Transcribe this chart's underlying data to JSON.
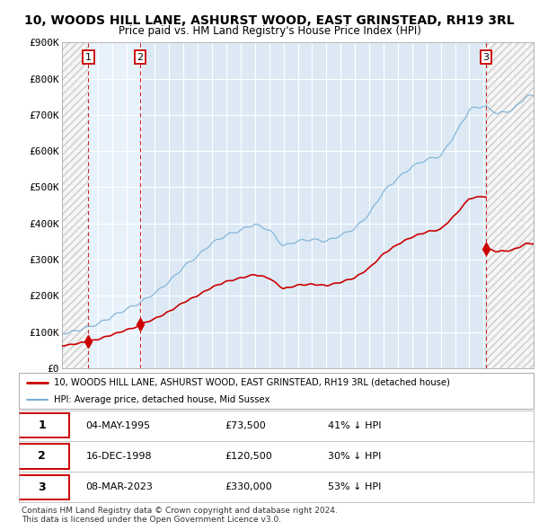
{
  "title": "10, WOODS HILL LANE, ASHURST WOOD, EAST GRINSTEAD, RH19 3RL",
  "subtitle": "Price paid vs. HM Land Registry's House Price Index (HPI)",
  "ylim": [
    0,
    900000
  ],
  "yticks": [
    0,
    100000,
    200000,
    300000,
    400000,
    500000,
    600000,
    700000,
    800000,
    900000
  ],
  "ytick_labels": [
    "£0",
    "£100K",
    "£200K",
    "£300K",
    "£400K",
    "£500K",
    "£600K",
    "£700K",
    "£800K",
    "£900K"
  ],
  "xlim_start": 1993.5,
  "xlim_end": 2026.5,
  "sales": [
    {
      "date_num": 1995.34,
      "price": 73500,
      "label": "1"
    },
    {
      "date_num": 1998.96,
      "price": 120500,
      "label": "2"
    },
    {
      "date_num": 2023.18,
      "price": 330000,
      "label": "3"
    }
  ],
  "sale_color": "#cc0000",
  "hpi_color": "#7aafd4",
  "legend_entries": [
    "10, WOODS HILL LANE, ASHURST WOOD, EAST GRINSTEAD, RH19 3RL (detached house)",
    "HPI: Average price, detached house, Mid Sussex"
  ],
  "table_rows": [
    {
      "num": "1",
      "date": "04-MAY-1995",
      "price": "£73,500",
      "hpi": "41% ↓ HPI"
    },
    {
      "num": "2",
      "date": "16-DEC-1998",
      "price": "£120,500",
      "hpi": "30% ↓ HPI"
    },
    {
      "num": "3",
      "date": "08-MAR-2023",
      "price": "£330,000",
      "hpi": "53% ↓ HPI"
    }
  ],
  "footnote": "Contains HM Land Registry data © Crown copyright and database right 2024.\nThis data is licensed under the Open Government Licence v3.0.",
  "bg_color": "#ffffff",
  "plot_bg_color": "#dce9f5",
  "grid_color": "#ffffff",
  "hatch_bg_color": "#e8eef5",
  "hatch_left_color": "#f0f0f0",
  "between_sale_color": "#e0ecf8"
}
